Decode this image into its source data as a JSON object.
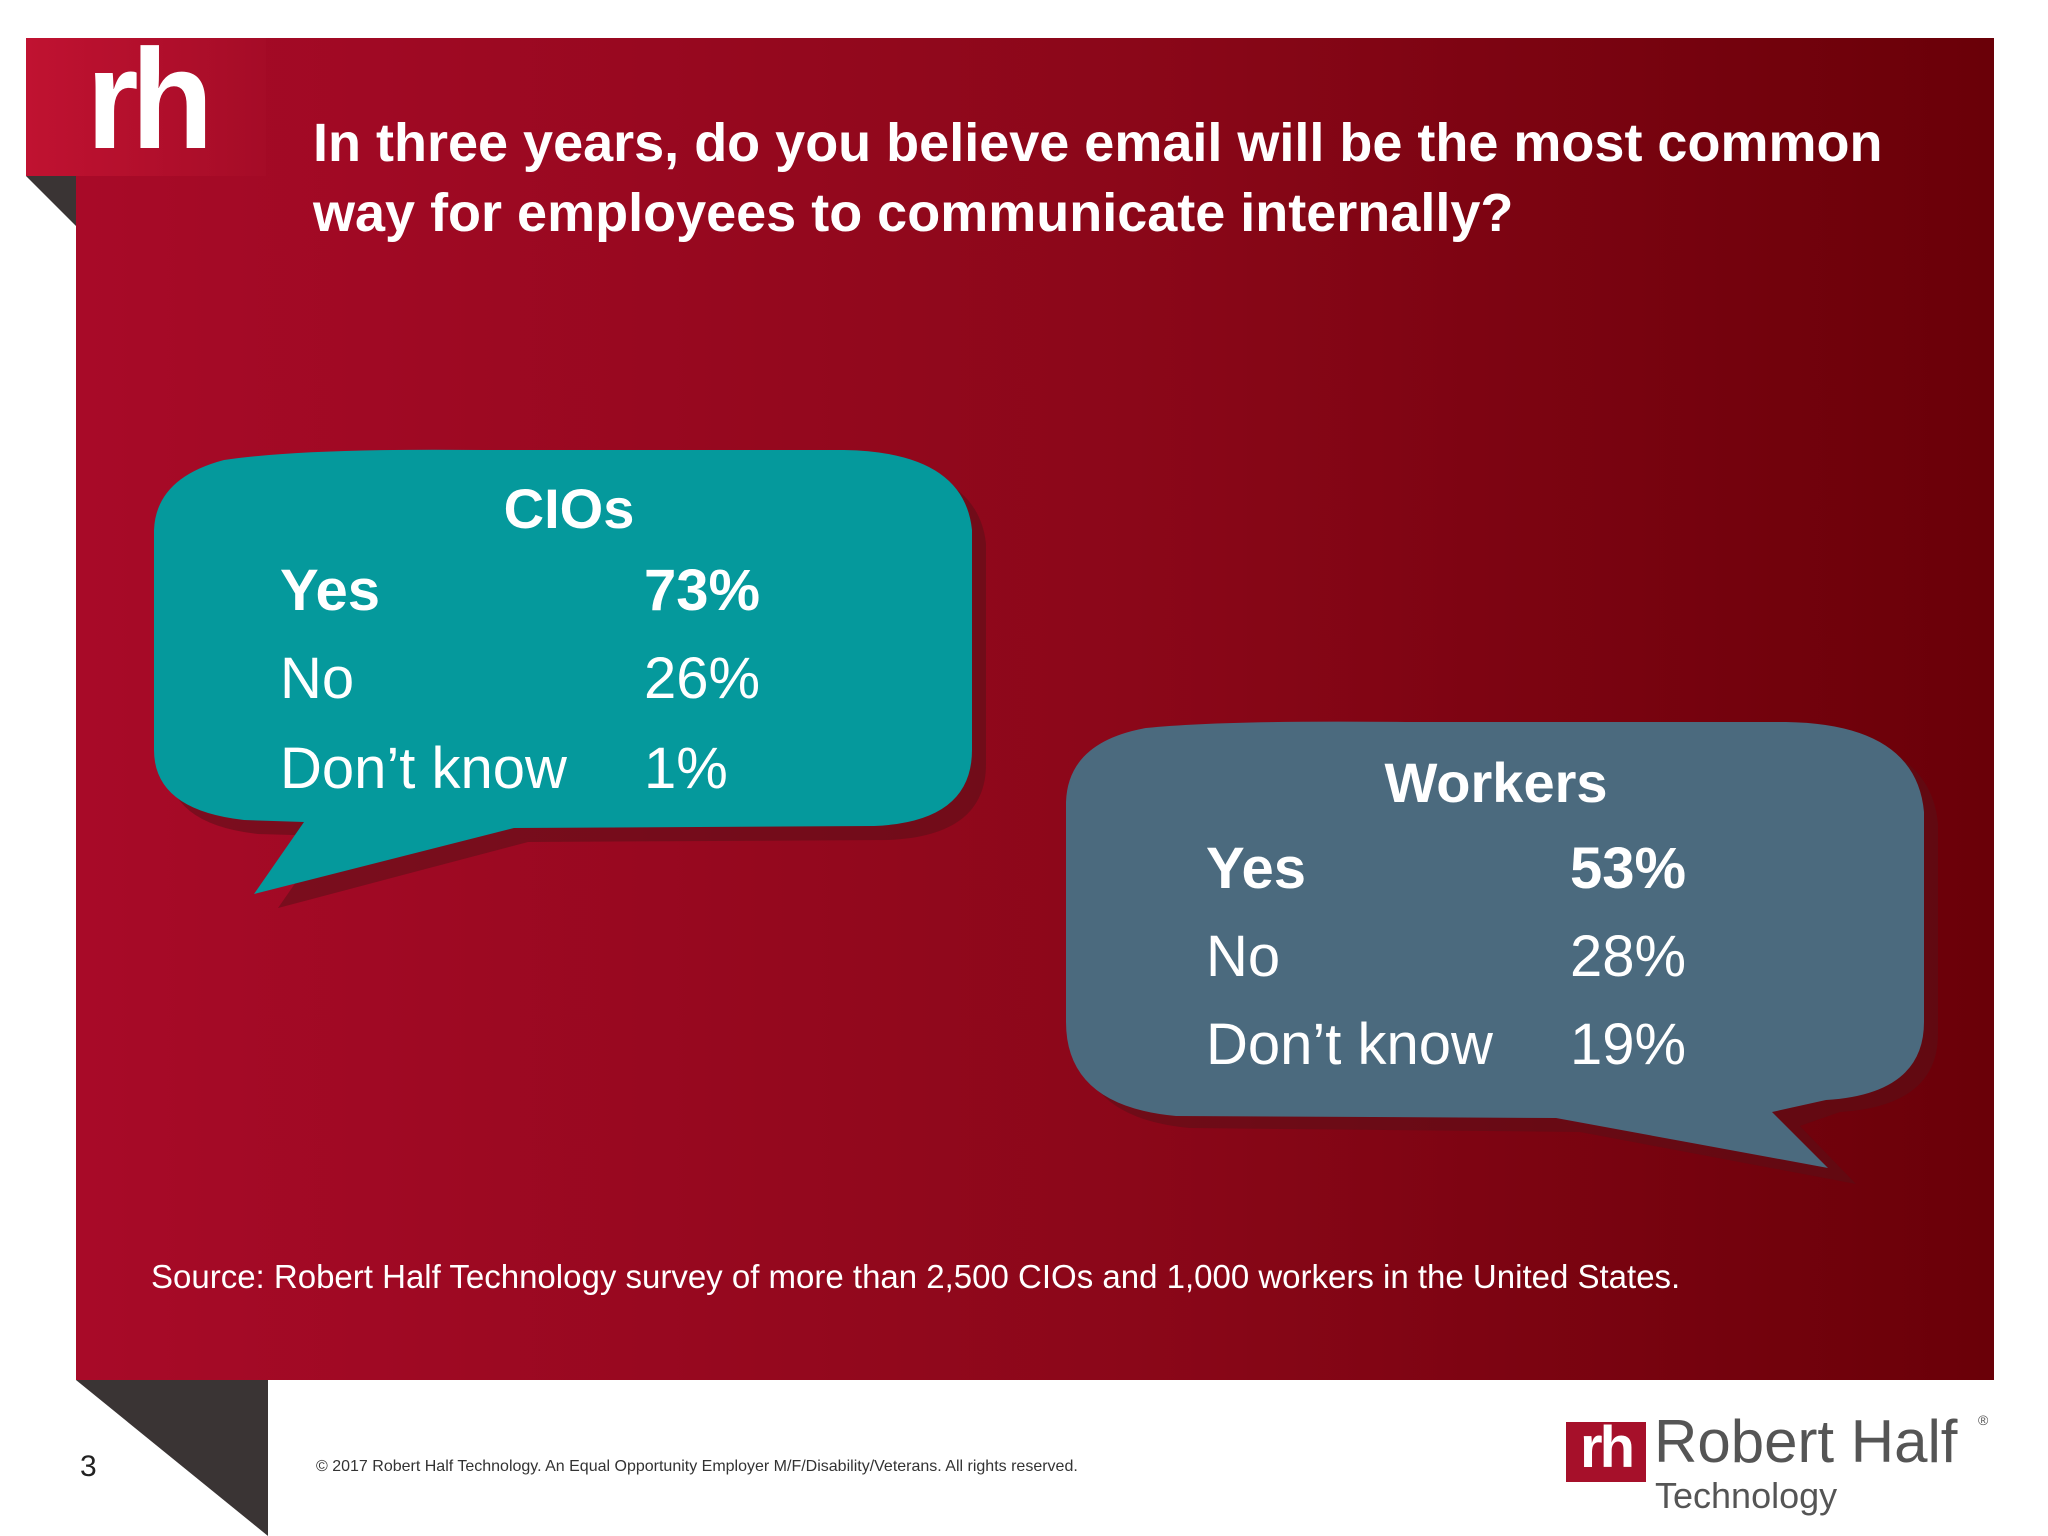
{
  "logo_text": "rh",
  "title": "In three years, do you believe email will be the most common way for employees to communicate internally?",
  "colors": {
    "panel_start": "#a80a28",
    "panel_end": "#6a0008",
    "cios_bubble": "#05999c",
    "workers_bubble": "#4b6a7e",
    "brand_red": "#a6102a"
  },
  "cios": {
    "heading": "CIOs",
    "rows": [
      {
        "label": "Yes",
        "value": "73%"
      },
      {
        "label": "No",
        "value": "26%"
      },
      {
        "label": "Don’t know",
        "value": "1%"
      }
    ]
  },
  "workers": {
    "heading": "Workers",
    "rows": [
      {
        "label": "Yes",
        "value": "53%"
      },
      {
        "label": "No",
        "value": "28%"
      },
      {
        "label": "Don’t know",
        "value": "19%"
      }
    ]
  },
  "source": "Source: Robert Half Technology survey of more than 2,500 CIOs and 1,000 workers in the United States.",
  "footer": {
    "page_number": "3",
    "copyright": "© 2017 Robert Half Technology. An Equal Opportunity Employer M/F/Disability/Veterans. All rights reserved.",
    "brand_mark": "rh",
    "brand_name": "Robert Half",
    "brand_reg": "®",
    "brand_sub": "Technology"
  }
}
